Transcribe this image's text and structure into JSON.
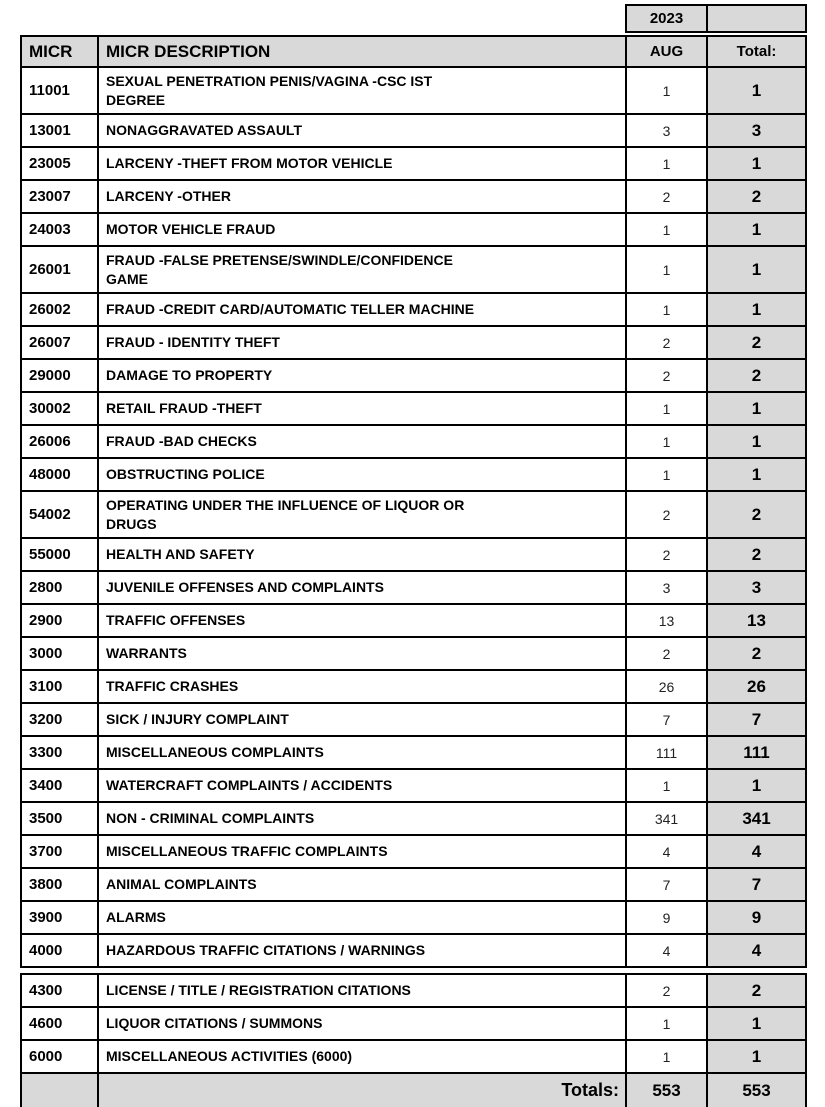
{
  "report": {
    "year": "2023",
    "columns": {
      "micr": "MICR",
      "description": "MICR DESCRIPTION",
      "month": "AUG",
      "total": "Total:"
    },
    "rows_section1": [
      {
        "micr": "11001",
        "desc": "SEXUAL PENETRATION PENIS/VAGINA -CSC IST\nDEGREE",
        "aug": "1",
        "total": "1",
        "tall": true
      },
      {
        "micr": "13001",
        "desc": "NONAGGRAVATED ASSAULT",
        "aug": "3",
        "total": "3"
      },
      {
        "micr": "23005",
        "desc": "LARCENY -THEFT FROM MOTOR VEHICLE",
        "aug": "1",
        "total": "1"
      },
      {
        "micr": "23007",
        "desc": "LARCENY -OTHER",
        "aug": "2",
        "total": "2"
      },
      {
        "micr": "24003",
        "desc": "MOTOR VEHICLE FRAUD",
        "aug": "1",
        "total": "1"
      },
      {
        "micr": "26001",
        "desc": "FRAUD -FALSE PRETENSE/SWINDLE/CONFIDENCE\nGAME",
        "aug": "1",
        "total": "1",
        "tall": true
      },
      {
        "micr": "26002",
        "desc": "FRAUD -CREDIT CARD/AUTOMATIC TELLER MACHINE",
        "aug": "1",
        "total": "1"
      },
      {
        "micr": "26007",
        "desc": "FRAUD - IDENTITY THEFT",
        "aug": "2",
        "total": "2"
      },
      {
        "micr": "29000",
        "desc": "DAMAGE TO PROPERTY",
        "aug": "2",
        "total": "2"
      },
      {
        "micr": "30002",
        "desc": "RETAIL FRAUD -THEFT",
        "aug": "1",
        "total": "1"
      },
      {
        "micr": "26006",
        "desc": "FRAUD -BAD CHECKS",
        "aug": "1",
        "total": "1"
      },
      {
        "micr": "48000",
        "desc": "OBSTRUCTING POLICE",
        "aug": "1",
        "total": "1"
      },
      {
        "micr": "54002",
        "desc": "OPERATING UNDER THE INFLUENCE OF LIQUOR OR\nDRUGS",
        "aug": "2",
        "total": "2",
        "tall": true
      },
      {
        "micr": "55000",
        "desc": "HEALTH AND SAFETY",
        "aug": "2",
        "total": "2"
      },
      {
        "micr": "2800",
        "desc": "JUVENILE OFFENSES AND COMPLAINTS",
        "aug": "3",
        "total": "3"
      },
      {
        "micr": "2900",
        "desc": "TRAFFIC OFFENSES",
        "aug": "13",
        "total": "13"
      },
      {
        "micr": "3000",
        "desc": "WARRANTS",
        "aug": "2",
        "total": "2"
      },
      {
        "micr": "3100",
        "desc": "TRAFFIC CRASHES",
        "aug": "26",
        "total": "26"
      },
      {
        "micr": "3200",
        "desc": "SICK / INJURY COMPLAINT",
        "aug": "7",
        "total": "7"
      },
      {
        "micr": "3300",
        "desc": "MISCELLANEOUS COMPLAINTS",
        "aug": "111",
        "total": "111"
      },
      {
        "micr": "3400",
        "desc": "WATERCRAFT COMPLAINTS / ACCIDENTS",
        "aug": "1",
        "total": "1"
      },
      {
        "micr": "3500",
        "desc": "NON - CRIMINAL COMPLAINTS",
        "aug": "341",
        "total": "341"
      },
      {
        "micr": "3700",
        "desc": "MISCELLANEOUS TRAFFIC COMPLAINTS",
        "aug": "4",
        "total": "4"
      },
      {
        "micr": "3800",
        "desc": "ANIMAL COMPLAINTS",
        "aug": "7",
        "total": "7"
      },
      {
        "micr": "3900",
        "desc": "ALARMS",
        "aug": "9",
        "total": "9"
      },
      {
        "micr": "4000",
        "desc": "HAZARDOUS TRAFFIC CITATIONS / WARNINGS",
        "aug": "4",
        "total": "4"
      }
    ],
    "rows_section2": [
      {
        "micr": "4300",
        "desc": "LICENSE / TITLE / REGISTRATION CITATIONS",
        "aug": "2",
        "total": "2"
      },
      {
        "micr": "4600",
        "desc": "LIQUOR CITATIONS / SUMMONS",
        "aug": "1",
        "total": "1"
      },
      {
        "micr": "6000",
        "desc": "MISCELLANEOUS ACTIVITIES (6000)",
        "aug": "1",
        "total": "1"
      }
    ],
    "totals": {
      "label": "Totals:",
      "aug": "553",
      "total": "553"
    },
    "colors": {
      "header_bg": "#d9d9d9",
      "total_column_bg": "#d9d9d9",
      "totals_row_bg": "#d9d9d9",
      "border": "#000000",
      "page_bg": "#ffffff"
    }
  }
}
